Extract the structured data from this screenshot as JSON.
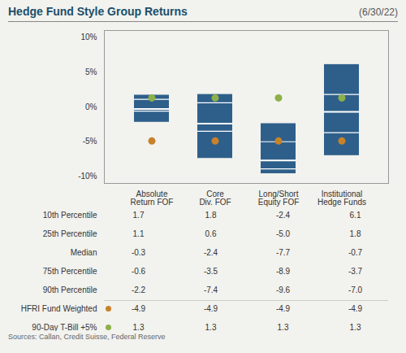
{
  "chart_data": {
    "type": "box",
    "title": "Hedge Fund Style Group Returns",
    "subtitle": "(6/30/22)",
    "annotations": [
      "Sources: Callan, Credit Suisse, Federal Reserve"
    ],
    "categories": [
      "Absolute\nReturn FOF",
      "Core\nDiv. FOF",
      "Long/Short\nEquity FOF",
      "Institutional\nHedge Funds"
    ],
    "color": "#2E5F8A",
    "series": [
      {
        "name": "10th Percentile",
        "type": "box",
        "values": [
          1.7,
          1.8,
          -2.4,
          6.1
        ],
        "value_labels": [
          "1.7",
          "1.8",
          "-2.4",
          "6.1"
        ]
      },
      {
        "name": "25th Percentile",
        "type": "box",
        "values": [
          1.1,
          0.6,
          -5.0,
          1.8
        ],
        "value_labels": [
          "1.1",
          "0.6",
          "-5.0",
          "1.8"
        ]
      },
      {
        "name": "Median",
        "type": "box",
        "values": [
          -0.3,
          -2.4,
          -7.7,
          -0.7
        ],
        "value_labels": [
          "-0.3",
          "-2.4",
          "-7.7",
          "-0.7"
        ]
      },
      {
        "name": "75th Percentile",
        "type": "box",
        "values": [
          -0.6,
          -3.5,
          -8.9,
          -3.7
        ],
        "value_labels": [
          "-0.6",
          "-3.5",
          "-8.9",
          "-3.7"
        ]
      },
      {
        "name": "90th Percentile",
        "type": "box",
        "values": [
          -2.2,
          -7.4,
          -9.6,
          -7.0
        ],
        "value_labels": [
          "-2.2",
          "-7.4",
          "-9.6",
          "-7.0"
        ]
      },
      {
        "name": "HFRI Fund Weighted",
        "type": "scatter",
        "marker": "dot",
        "color": "#C8822A",
        "values": [
          -4.9,
          -4.9,
          -4.9,
          -4.9
        ],
        "value_labels": [
          "-4.9",
          "-4.9",
          "-4.9",
          "-4.9"
        ]
      },
      {
        "name": "90-Day T-Bill +5%",
        "type": "scatter",
        "marker": "dot",
        "color": "#8DB04A",
        "values": [
          1.3,
          1.3,
          1.3,
          1.3
        ],
        "value_labels": [
          "1.3",
          "1.3",
          "1.3",
          "1.3"
        ]
      }
    ],
    "ylim": [
      -11,
      11
    ],
    "yticks": [
      {
        "value": -10,
        "label": "-10%"
      },
      {
        "value": -5,
        "label": "-5%"
      },
      {
        "value": 0,
        "label": "0%"
      },
      {
        "value": 5,
        "label": "5%"
      },
      {
        "value": 10,
        "label": "10%"
      }
    ],
    "grid": false
  }
}
